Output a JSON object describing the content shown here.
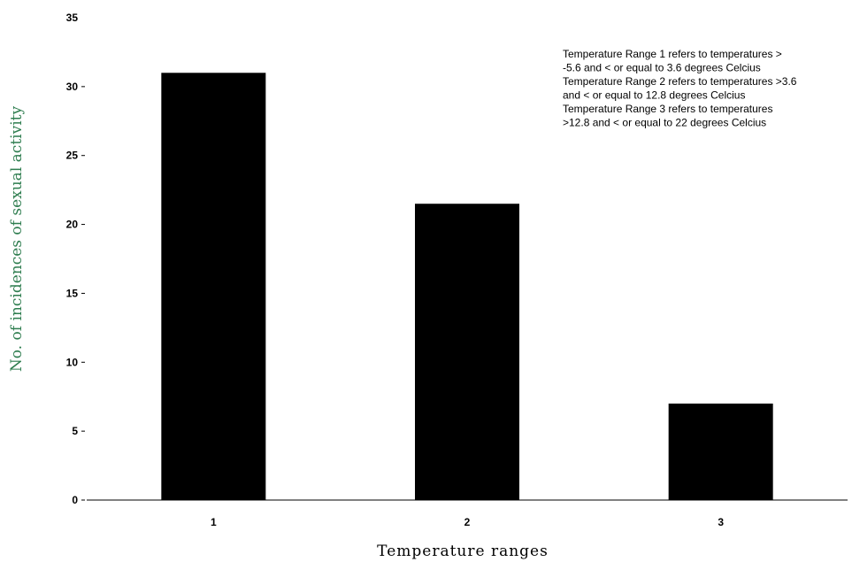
{
  "chart_data": {
    "type": "bar",
    "categories": [
      "1",
      "2",
      "3"
    ],
    "values": [
      31,
      21.5,
      7
    ],
    "xlabel": "Temperature ranges",
    "ylabel": "No. of incidences of sexual activity",
    "ylim": [
      0,
      35
    ],
    "yticks": [
      0,
      5,
      10,
      15,
      20,
      25,
      30,
      35
    ],
    "grid": false,
    "legend": "none",
    "bar_color": "#000000",
    "ylabel_color": "#2e7d4f",
    "annotations": [
      "Temperature Range 1 refers to temperatures >",
      "-5.6 and < or equal to 3.6 degrees Celcius",
      "Temperature Range 2 refers to temperatures >3.6",
      "and < or equal to 12.8 degrees Celcius",
      "Temperature Range 3 refers to temperatures",
      ">12.8  and < or equal to 22 degrees Celcius"
    ]
  }
}
